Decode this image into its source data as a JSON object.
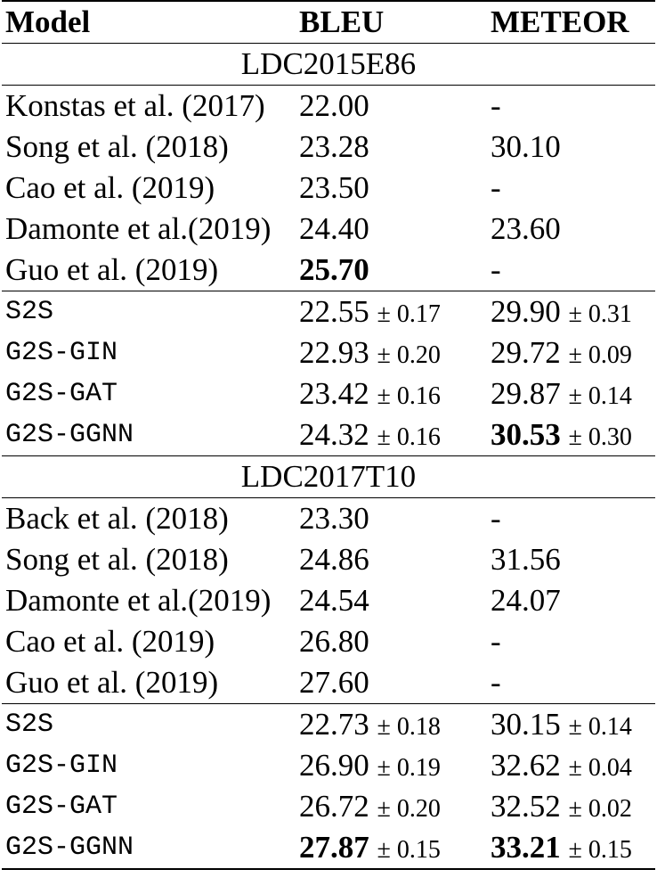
{
  "table": {
    "headers": [
      "Model",
      "BLEU",
      "METEOR"
    ],
    "sections": [
      {
        "name": "LDC2015E86",
        "prior_work": [
          {
            "model": "Konstas et al. (2017)",
            "bleu": "22.00",
            "meteor": "-"
          },
          {
            "model": "Song et al. (2018)",
            "bleu": "23.28",
            "meteor": "30.10"
          },
          {
            "model": "Cao et al. (2019)",
            "bleu": "23.50",
            "meteor": "-"
          },
          {
            "model": "Damonte et al.(2019)",
            "bleu": "24.40",
            "meteor": "23.60"
          },
          {
            "model": "Guo et al. (2019)",
            "bleu": "25.70",
            "meteor": "-",
            "bleu_bold": true
          }
        ],
        "ours": [
          {
            "model": "S2S",
            "bleu": "22.55",
            "bleu_std": "± 0.17",
            "meteor": "29.90",
            "meteor_std": "± 0.31"
          },
          {
            "model": "G2S-GIN",
            "bleu": "22.93",
            "bleu_std": "± 0.20",
            "meteor": "29.72",
            "meteor_std": "± 0.09"
          },
          {
            "model": "G2S-GAT",
            "bleu": "23.42",
            "bleu_std": "± 0.16",
            "meteor": "29.87",
            "meteor_std": "± 0.14"
          },
          {
            "model": "G2S-GGNN",
            "bleu": "24.32",
            "bleu_std": "± 0.16",
            "meteor": "30.53",
            "meteor_std": "± 0.30",
            "meteor_bold": true
          }
        ]
      },
      {
        "name": "LDC2017T10",
        "prior_work": [
          {
            "model": "Back et al. (2018)",
            "bleu": "23.30",
            "meteor": "-"
          },
          {
            "model": "Song et al. (2018)",
            "bleu": "24.86",
            "meteor": "31.56"
          },
          {
            "model": "Damonte et al.(2019)",
            "bleu": "24.54",
            "meteor": "24.07"
          },
          {
            "model": "Cao et al. (2019)",
            "bleu": "26.80",
            "meteor": "-"
          },
          {
            "model": "Guo et al. (2019)",
            "bleu": "27.60",
            "meteor": "-"
          }
        ],
        "ours": [
          {
            "model": "S2S",
            "bleu": "22.73",
            "bleu_std": "± 0.18",
            "meteor": "30.15",
            "meteor_std": "± 0.14"
          },
          {
            "model": "G2S-GIN",
            "bleu": "26.90",
            "bleu_std": "± 0.19",
            "meteor": "32.62",
            "meteor_std": "± 0.04"
          },
          {
            "model": "G2S-GAT",
            "bleu": "26.72",
            "bleu_std": "± 0.20",
            "meteor": "32.52",
            "meteor_std": "± 0.02"
          },
          {
            "model": "G2S-GGNN",
            "bleu": "27.87",
            "bleu_std": "± 0.15",
            "meteor": "33.21",
            "meteor_std": "± 0.15",
            "bleu_bold": true,
            "meteor_bold": true
          }
        ]
      }
    ]
  }
}
